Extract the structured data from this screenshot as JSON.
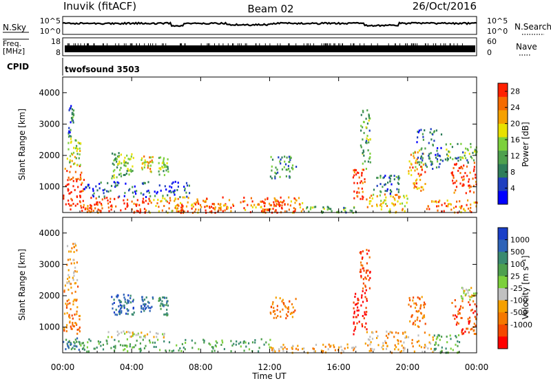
{
  "header": {
    "station": "Inuvik (fitACF)",
    "beam": "Beam 02",
    "date": "26/Oct/2016"
  },
  "noise_panel": {
    "left_label": "N.Sky",
    "right_label": "N.Search",
    "ticks": [
      "10^5",
      "10^0"
    ],
    "legend_line": "dotted"
  },
  "freq_panel": {
    "left_label_1": "Freq.",
    "left_label_2": "[MHz]",
    "left_ticks": [
      "18",
      "8"
    ],
    "right_label": "Nave",
    "right_ticks": [
      "60",
      "0"
    ]
  },
  "cpid": {
    "label": "CPID",
    "program": "twofsound 3503"
  },
  "colors": {
    "power_scale": [
      "#0000ff",
      "#2040c0",
      "#2e7d5a",
      "#4ea04e",
      "#7cd03c",
      "#e8e000",
      "#f5a000",
      "#f56a00",
      "#ff2000"
    ],
    "velocity_scale": [
      "#1a3fc8",
      "#2e63b8",
      "#3a8a70",
      "#4ea04e",
      "#7cd03c",
      "#c0c0c0",
      "#f5a000",
      "#f57800",
      "#f54800",
      "#ff0000"
    ],
    "ground_scatter": "#c0c0c0"
  },
  "chart_data": [
    {
      "type": "heatmap",
      "name_in_figure": "power panel",
      "xlabel": "",
      "ylabel": "Slant Range [km]",
      "x_range_hours": [
        0,
        24
      ],
      "ylim": [
        180,
        4500
      ],
      "y_ticks": [
        "1000",
        "2000",
        "3000",
        "4000"
      ],
      "colorbar_label": "Power [dB]",
      "colorbar_ticks": [
        "4",
        "8",
        "12",
        "16",
        "20",
        "24",
        "28"
      ],
      "colorbar_range": [
        0,
        30
      ],
      "regions": [
        {
          "t0": 0.0,
          "t1": 1.2,
          "r0": 300,
          "r1": 1700,
          "level": 28
        },
        {
          "t0": 0.2,
          "t1": 1.0,
          "r0": 1700,
          "r1": 2600,
          "level": 16
        },
        {
          "t0": 0.3,
          "t1": 0.6,
          "r0": 2600,
          "r1": 3700,
          "level": 8
        },
        {
          "t0": 1.0,
          "t1": 2.3,
          "r0": 200,
          "r1": 500,
          "level": 26
        },
        {
          "t0": 1.5,
          "t1": 5.0,
          "r0": 200,
          "r1": 700,
          "level": 28
        },
        {
          "t0": 2.8,
          "t1": 3.4,
          "r0": 1300,
          "r1": 2200,
          "level": 14
        },
        {
          "t0": 3.5,
          "t1": 4.1,
          "r0": 1400,
          "r1": 2100,
          "level": 14
        },
        {
          "t0": 4.5,
          "t1": 5.2,
          "r0": 1500,
          "r1": 2000,
          "level": 20
        },
        {
          "t0": 5.5,
          "t1": 6.1,
          "r0": 1400,
          "r1": 2000,
          "level": 14
        },
        {
          "t0": 1.2,
          "t1": 7.5,
          "r0": 700,
          "r1": 1200,
          "level": 6
        },
        {
          "t0": 5.0,
          "t1": 9.0,
          "r0": 200,
          "r1": 700,
          "level": 22
        },
        {
          "t0": 6.5,
          "t1": 9.5,
          "r0": 200,
          "r1": 500,
          "level": 28
        },
        {
          "t0": 9.0,
          "t1": 14.0,
          "r0": 200,
          "r1": 700,
          "level": 24
        },
        {
          "t0": 11.5,
          "t1": 13.0,
          "r0": 200,
          "r1": 600,
          "level": 28
        },
        {
          "t0": 12.0,
          "t1": 13.5,
          "r0": 1300,
          "r1": 2000,
          "level": 10
        },
        {
          "t0": 14.0,
          "t1": 17.0,
          "r0": 200,
          "r1": 400,
          "level": 12
        },
        {
          "t0": 16.8,
          "t1": 17.5,
          "r0": 600,
          "r1": 1600,
          "level": 28
        },
        {
          "t0": 17.2,
          "t1": 17.8,
          "r0": 1600,
          "r1": 3500,
          "level": 12
        },
        {
          "t0": 17.5,
          "t1": 20.0,
          "r0": 200,
          "r1": 800,
          "level": 20
        },
        {
          "t0": 18.0,
          "t1": 19.5,
          "r0": 800,
          "r1": 1400,
          "level": 8
        },
        {
          "t0": 20.0,
          "t1": 21.0,
          "r0": 900,
          "r1": 2200,
          "level": 22
        },
        {
          "t0": 20.5,
          "t1": 22.0,
          "r0": 1600,
          "r1": 2900,
          "level": 8
        },
        {
          "t0": 22.5,
          "t1": 24.0,
          "r0": 800,
          "r1": 1800,
          "level": 28
        },
        {
          "t0": 22.0,
          "t1": 24.0,
          "r0": 1800,
          "r1": 2400,
          "level": 12
        },
        {
          "t0": 21.0,
          "t1": 24.0,
          "r0": 200,
          "r1": 600,
          "level": 24
        }
      ]
    },
    {
      "type": "heatmap",
      "name_in_figure": "velocity panel",
      "xlabel": "Time UT",
      "ylabel": "Slant Range [km]",
      "x_range_hours": [
        0,
        24
      ],
      "x_ticks": [
        "00:00",
        "04:00",
        "08:00",
        "12:00",
        "16:00",
        "20:00",
        "00:00"
      ],
      "ylim": [
        180,
        4500
      ],
      "y_ticks": [
        "1000",
        "2000",
        "3000",
        "4000"
      ],
      "colorbar_label": "Velocity [m s⁻¹]",
      "colorbar_ticks": [
        "1000",
        "500",
        "100",
        "25",
        "-25",
        "-100",
        "-500",
        "-1000"
      ],
      "regions": [
        {
          "t0": 0.0,
          "t1": 1.0,
          "r0": 800,
          "r1": 2400,
          "cls": 7
        },
        {
          "t0": 0.2,
          "t1": 0.8,
          "r0": 2400,
          "r1": 3700,
          "cls": 6
        },
        {
          "t0": 0.0,
          "t1": 1.0,
          "r0": 300,
          "r1": 700,
          "cls": 2
        },
        {
          "t0": 1.0,
          "t1": 12.0,
          "r0": 250,
          "r1": 650,
          "cls": 3
        },
        {
          "t0": 2.5,
          "t1": 6.0,
          "r0": 700,
          "r1": 900,
          "cls": 5
        },
        {
          "t0": 2.8,
          "t1": 3.4,
          "r0": 1400,
          "r1": 2100,
          "cls": 1
        },
        {
          "t0": 3.5,
          "t1": 4.1,
          "r0": 1400,
          "r1": 2100,
          "cls": 1
        },
        {
          "t0": 4.5,
          "t1": 5.2,
          "r0": 1500,
          "r1": 2000,
          "cls": 1
        },
        {
          "t0": 5.5,
          "t1": 6.1,
          "r0": 1400,
          "r1": 2000,
          "cls": 2
        },
        {
          "t0": 12.0,
          "t1": 13.5,
          "r0": 1300,
          "r1": 2000,
          "cls": 7
        },
        {
          "t0": 12.0,
          "t1": 17.0,
          "r0": 200,
          "r1": 500,
          "cls": 6
        },
        {
          "t0": 16.8,
          "t1": 17.6,
          "r0": 800,
          "r1": 2200,
          "cls": 9
        },
        {
          "t0": 17.2,
          "t1": 17.8,
          "r0": 2200,
          "r1": 3500,
          "cls": 8
        },
        {
          "t0": 17.5,
          "t1": 21.5,
          "r0": 200,
          "r1": 900,
          "cls": 6
        },
        {
          "t0": 20.0,
          "t1": 21.0,
          "r0": 1000,
          "r1": 2000,
          "cls": 7
        },
        {
          "t0": 21.5,
          "t1": 23.0,
          "r0": 200,
          "r1": 800,
          "cls": 3
        },
        {
          "t0": 22.5,
          "t1": 24.0,
          "r0": 800,
          "r1": 1900,
          "cls": 8
        },
        {
          "t0": 23.0,
          "t1": 24.0,
          "r0": 1900,
          "r1": 2300,
          "cls": 5
        }
      ]
    }
  ]
}
